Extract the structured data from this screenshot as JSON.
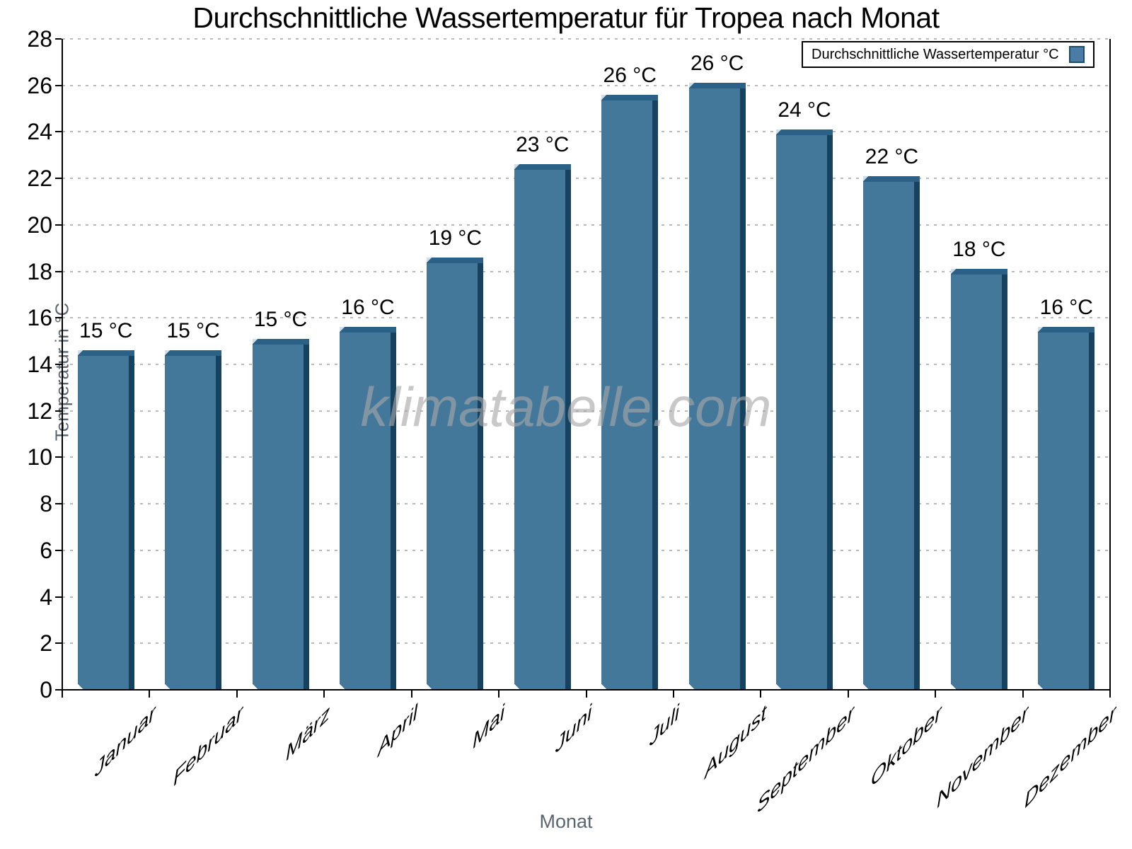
{
  "chart_data": {
    "type": "bar",
    "title": "Durchschnittliche Wassertemperatur für Tropea nach Monat",
    "xlabel": "Monat",
    "ylabel": "Temperatur in °C",
    "categories": [
      "Januar",
      "Februar",
      "März",
      "April",
      "Mai",
      "Juni",
      "Juli",
      "August",
      "September",
      "Oktober",
      "November",
      "Dezember"
    ],
    "series": [
      {
        "name": "Durchschnittliche Wassertemperatur °C",
        "values": [
          14.6,
          14.6,
          15.1,
          15.6,
          18.6,
          22.6,
          25.6,
          26.1,
          24.1,
          22.1,
          18.1,
          15.6
        ],
        "value_labels": [
          "15 °C",
          "15 °C",
          "15 °C",
          "16 °C",
          "19 °C",
          "23 °C",
          "26 °C",
          "26 °C",
          "24 °C",
          "22 °C",
          "18 °C",
          "16 °C"
        ]
      }
    ],
    "ylim": [
      0,
      28
    ],
    "ytick_step": 2,
    "ytick_labels": [
      "0",
      "2",
      "4",
      "6",
      "8",
      "10",
      "12",
      "14",
      "16",
      "18",
      "20",
      "22",
      "24",
      "26",
      "28"
    ],
    "grid": "horizontal-dashed",
    "legend_position": "top-right",
    "legend_label": "Durchschnittliche Wassertemperatur °C",
    "watermark": "klimatabelle.com",
    "colors": {
      "bar_fill": "#44789b",
      "bar_right_edge": "#16425f",
      "bar_top_cap": "#2b6187",
      "bar_highlight": "#cfdfe9",
      "legend_swatch": "#4a7ca6",
      "gridline": "#b9b9b9",
      "axis": "#000000",
      "axis_title_text": "#5a6570",
      "watermark_text": "#a8a8a8"
    }
  }
}
